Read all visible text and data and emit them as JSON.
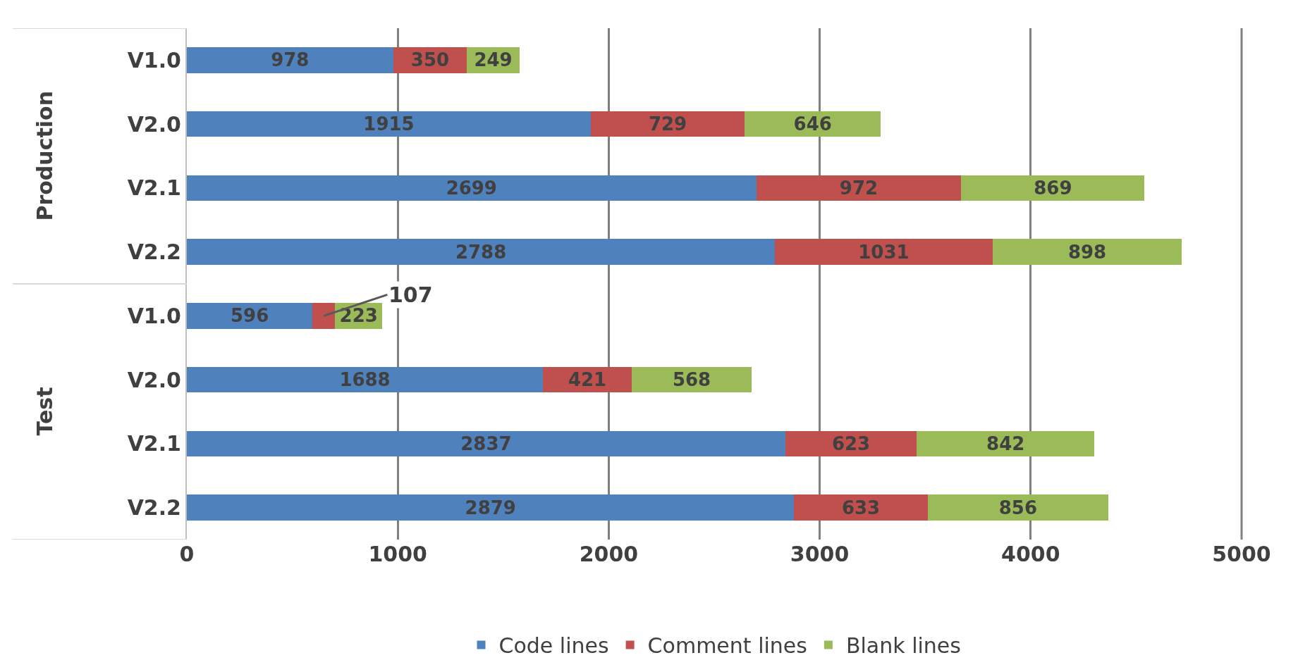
{
  "chart_data": {
    "type": "bar",
    "orientation": "horizontal",
    "stacked": true,
    "data_labels": true,
    "grid": "x",
    "legend": "bottom",
    "categories": [
      "V1.0",
      "V2.0",
      "V2.1",
      "V2.2",
      "V1.0",
      "V2.0",
      "V2.1",
      "V2.2"
    ],
    "annotations": [
      "Production",
      "Test"
    ],
    "xlim": [
      0,
      5000
    ],
    "xticks": [
      0,
      1000,
      2000,
      3000,
      4000,
      5000
    ],
    "series": [
      {
        "name": "Code lines",
        "color": "#4f81bd",
        "values": [
          978,
          1915,
          2699,
          2788,
          596,
          1688,
          2837,
          2879
        ]
      },
      {
        "name": "Comment lines",
        "color": "#c0504d",
        "values": [
          350,
          729,
          972,
          1031,
          107,
          421,
          623,
          633
        ]
      },
      {
        "name": "Blank lines",
        "color": "#9bbb59",
        "values": [
          249,
          646,
          869,
          898,
          223,
          568,
          842,
          856
        ]
      }
    ]
  }
}
